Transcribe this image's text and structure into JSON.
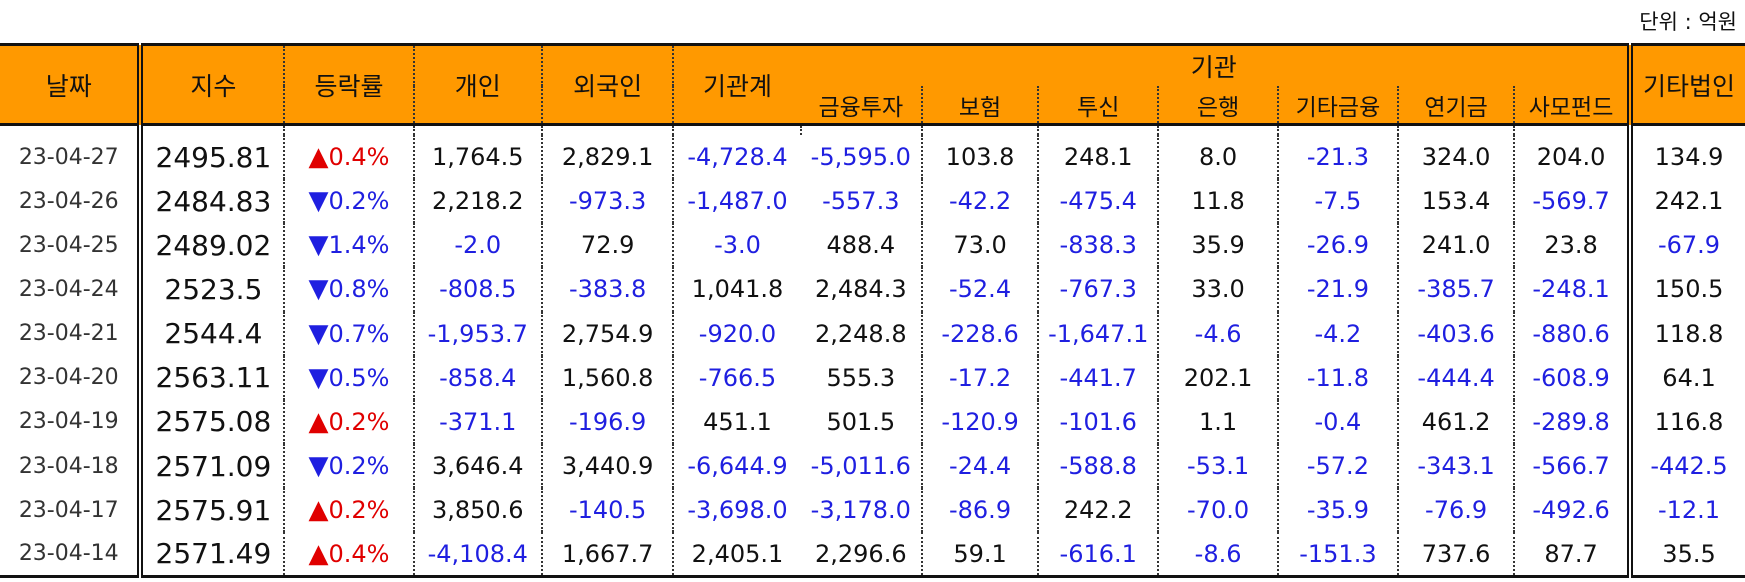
{
  "unit_label": "단위 : 억원",
  "headers": {
    "date": "날짜",
    "index": "지수",
    "change": "등락률",
    "individual": "개인",
    "foreign": "외국인",
    "inst_total": "기관계",
    "institution": "기관",
    "financial_invest": "금융투자",
    "insurance": "보험",
    "investment_trust": "투신",
    "bank": "은행",
    "other_financial": "기타금융",
    "pension": "연기금",
    "private_fund": "사모펀드",
    "other_corp": "기타법인"
  },
  "rows": [
    {
      "date": "23-04-27",
      "index": "2495.81",
      "dir": "up",
      "arrow": "▲",
      "change": "0.4%",
      "individual": "1,764.5",
      "foreign": "2,829.1",
      "inst_total": "-4,728.4",
      "financial_invest": "-5,595.0",
      "insurance": "103.8",
      "investment_trust": "248.1",
      "bank": "8.0",
      "other_financial": "-21.3",
      "pension": "324.0",
      "private_fund": "204.0",
      "other_corp": "134.9"
    },
    {
      "date": "23-04-26",
      "index": "2484.83",
      "dir": "down",
      "arrow": "▼",
      "change": "0.2%",
      "individual": "2,218.2",
      "foreign": "-973.3",
      "inst_total": "-1,487.0",
      "financial_invest": "-557.3",
      "insurance": "-42.2",
      "investment_trust": "-475.4",
      "bank": "11.8",
      "other_financial": "-7.5",
      "pension": "153.4",
      "private_fund": "-569.7",
      "other_corp": "242.1"
    },
    {
      "date": "23-04-25",
      "index": "2489.02",
      "dir": "down",
      "arrow": "▼",
      "change": "1.4%",
      "individual": "-2.0",
      "foreign": "72.9",
      "inst_total": "-3.0",
      "financial_invest": "488.4",
      "insurance": "73.0",
      "investment_trust": "-838.3",
      "bank": "35.9",
      "other_financial": "-26.9",
      "pension": "241.0",
      "private_fund": "23.8",
      "other_corp": "-67.9"
    },
    {
      "date": "23-04-24",
      "index": "2523.5",
      "dir": "down",
      "arrow": "▼",
      "change": "0.8%",
      "individual": "-808.5",
      "foreign": "-383.8",
      "inst_total": "1,041.8",
      "financial_invest": "2,484.3",
      "insurance": "-52.4",
      "investment_trust": "-767.3",
      "bank": "33.0",
      "other_financial": "-21.9",
      "pension": "-385.7",
      "private_fund": "-248.1",
      "other_corp": "150.5"
    },
    {
      "date": "23-04-21",
      "index": "2544.4",
      "dir": "down",
      "arrow": "▼",
      "change": "0.7%",
      "individual": "-1,953.7",
      "foreign": "2,754.9",
      "inst_total": "-920.0",
      "financial_invest": "2,248.8",
      "insurance": "-228.6",
      "investment_trust": "-1,647.1",
      "bank": "-4.6",
      "other_financial": "-4.2",
      "pension": "-403.6",
      "private_fund": "-880.6",
      "other_corp": "118.8"
    },
    {
      "date": "23-04-20",
      "index": "2563.11",
      "dir": "down",
      "arrow": "▼",
      "change": "0.5%",
      "individual": "-858.4",
      "foreign": "1,560.8",
      "inst_total": "-766.5",
      "financial_invest": "555.3",
      "insurance": "-17.2",
      "investment_trust": "-441.7",
      "bank": "202.1",
      "other_financial": "-11.8",
      "pension": "-444.4",
      "private_fund": "-608.9",
      "other_corp": "64.1"
    },
    {
      "date": "23-04-19",
      "index": "2575.08",
      "dir": "up",
      "arrow": "▲",
      "change": "0.2%",
      "individual": "-371.1",
      "foreign": "-196.9",
      "inst_total": "451.1",
      "financial_invest": "501.5",
      "insurance": "-120.9",
      "investment_trust": "-101.6",
      "bank": "1.1",
      "other_financial": "-0.4",
      "pension": "461.2",
      "private_fund": "-289.8",
      "other_corp": "116.8"
    },
    {
      "date": "23-04-18",
      "index": "2571.09",
      "dir": "down",
      "arrow": "▼",
      "change": "0.2%",
      "individual": "3,646.4",
      "foreign": "3,440.9",
      "inst_total": "-6,644.9",
      "financial_invest": "-5,011.6",
      "insurance": "-24.4",
      "investment_trust": "-588.8",
      "bank": "-53.1",
      "other_financial": "-57.2",
      "pension": "-343.1",
      "private_fund": "-566.7",
      "other_corp": "-442.5"
    },
    {
      "date": "23-04-17",
      "index": "2575.91",
      "dir": "up",
      "arrow": "▲",
      "change": "0.2%",
      "individual": "3,850.6",
      "foreign": "-140.5",
      "inst_total": "-3,698.0",
      "financial_invest": "-3,178.0",
      "insurance": "-86.9",
      "investment_trust": "242.2",
      "bank": "-70.0",
      "other_financial": "-35.9",
      "pension": "-76.9",
      "private_fund": "-492.6",
      "other_corp": "-12.1"
    },
    {
      "date": "23-04-14",
      "index": "2571.49",
      "dir": "up",
      "arrow": "▲",
      "change": "0.4%",
      "individual": "-4,108.4",
      "foreign": "1,667.7",
      "inst_total": "2,405.1",
      "financial_invest": "2,296.6",
      "insurance": "59.1",
      "investment_trust": "-616.1",
      "bank": "-8.6",
      "other_financial": "-151.3",
      "pension": "737.6",
      "private_fund": "87.7",
      "other_corp": "35.5"
    }
  ],
  "colors": {
    "header_bg": "#ff9900",
    "negative": "#1f1fe0",
    "up": "#e00000",
    "down": "#1f1fe0"
  }
}
